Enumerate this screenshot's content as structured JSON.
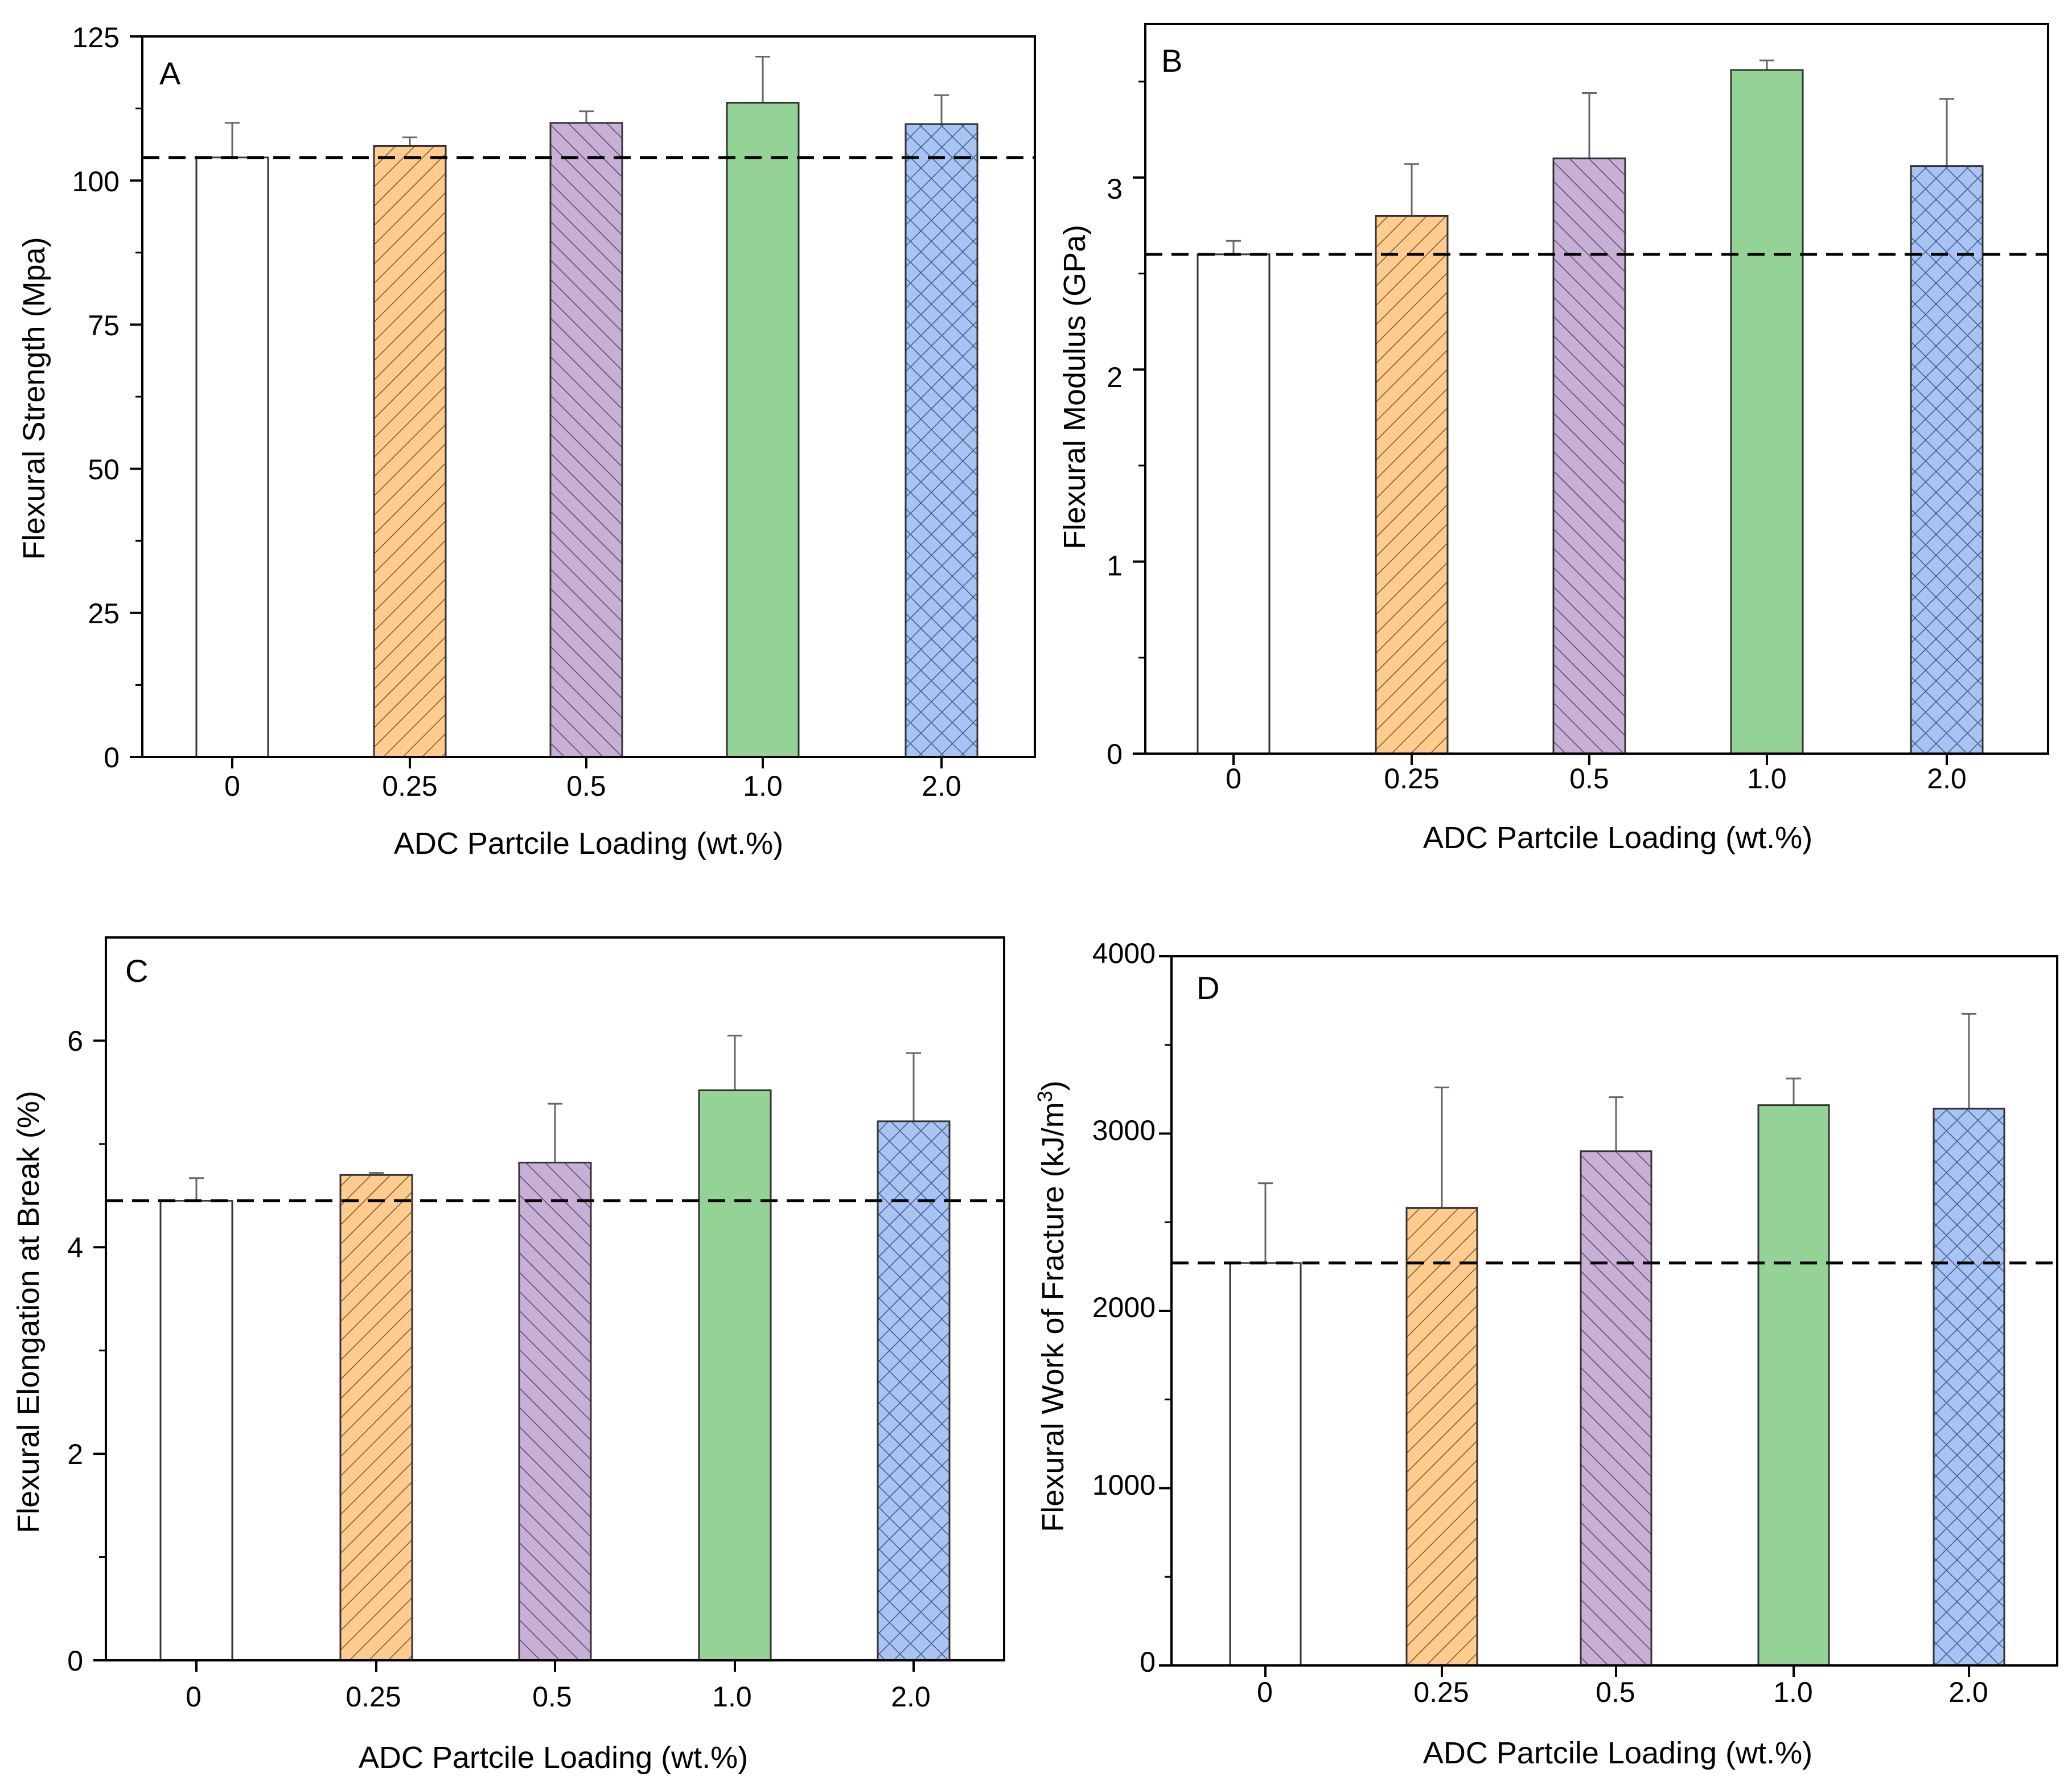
{
  "chart_data": [
    {
      "type": "bar",
      "panel": "A",
      "categories": [
        "0",
        "0.25",
        "0.5",
        "1.0",
        "2.0"
      ],
      "values": [
        104,
        106,
        110,
        113.5,
        109.8
      ],
      "errors": [
        6,
        1.5,
        2,
        8,
        5
      ],
      "reference_line": 104,
      "xlabel": "ADC Partcile Loading (wt.%)",
      "ylabel": "Flexural Strength (Mpa)",
      "ylim": [
        0,
        125
      ],
      "yticks": [
        "0",
        "25",
        "50",
        "75",
        "100",
        "125"
      ],
      "ytick_values": [
        0,
        25,
        50,
        75,
        100,
        125
      ],
      "minor_step": 12.5
    },
    {
      "type": "bar",
      "panel": "B",
      "categories": [
        "0",
        "0.25",
        "0.5",
        "1.0",
        "2.0"
      ],
      "values": [
        2.6,
        2.8,
        3.1,
        3.56,
        3.06
      ],
      "errors": [
        0.07,
        0.27,
        0.34,
        0.05,
        0.35
      ],
      "reference_line": 2.6,
      "xlabel": "ADC Partcile Loading (wt.%)",
      "ylabel": "Flexural Modulus (GPa)",
      "ylim": [
        0,
        3.8
      ],
      "yticks": [
        "0",
        "1",
        "2",
        "3"
      ],
      "ytick_values": [
        0,
        1,
        2,
        3
      ],
      "minor_step": 0.5
    },
    {
      "type": "bar",
      "panel": "C",
      "categories": [
        "0",
        "0.25",
        "0.5",
        "1.0",
        "2.0"
      ],
      "values": [
        4.45,
        4.7,
        4.82,
        5.52,
        5.22
      ],
      "errors": [
        0.22,
        0.02,
        0.57,
        0.53,
        0.66
      ],
      "reference_line": 4.45,
      "xlabel": "ADC Partcile Loading (wt.%)",
      "ylabel": "Flexural Elongation at Break (%)",
      "ylim": [
        0,
        7
      ],
      "yticks": [
        "0",
        "2",
        "4",
        "6"
      ],
      "ytick_values": [
        0,
        2,
        4,
        6
      ],
      "minor_step": 1
    },
    {
      "type": "bar",
      "panel": "D",
      "categories": [
        "0",
        "0.25",
        "0.5",
        "1.0",
        "2.0"
      ],
      "values": [
        2270,
        2580,
        2900,
        3160,
        3140
      ],
      "errors": [
        450,
        680,
        305,
        150,
        535
      ],
      "reference_line": 2270,
      "xlabel": "ADC Partcile Loading (wt.%)",
      "ylabel": "Flexural Work of Fracture (kJ/m",
      "ylabel_sup": "3",
      "ylabel_end": ")",
      "ylim": [
        0,
        4000
      ],
      "yticks": [
        "0",
        "1000",
        "2000",
        "3000",
        "4000"
      ],
      "ytick_values": [
        0,
        1000,
        2000,
        3000,
        4000
      ],
      "minor_step": 500
    }
  ],
  "style": {
    "bar_fills": [
      "#ffffff",
      "#ffcb8e",
      "#c8afd6",
      "#94d296",
      "#a9c4f2"
    ],
    "bar_patterns": [
      "none",
      "forward-hatch",
      "back-hatch",
      "solid",
      "cross-hatch"
    ],
    "axis_color": "#000000",
    "error_color": "#666666"
  }
}
